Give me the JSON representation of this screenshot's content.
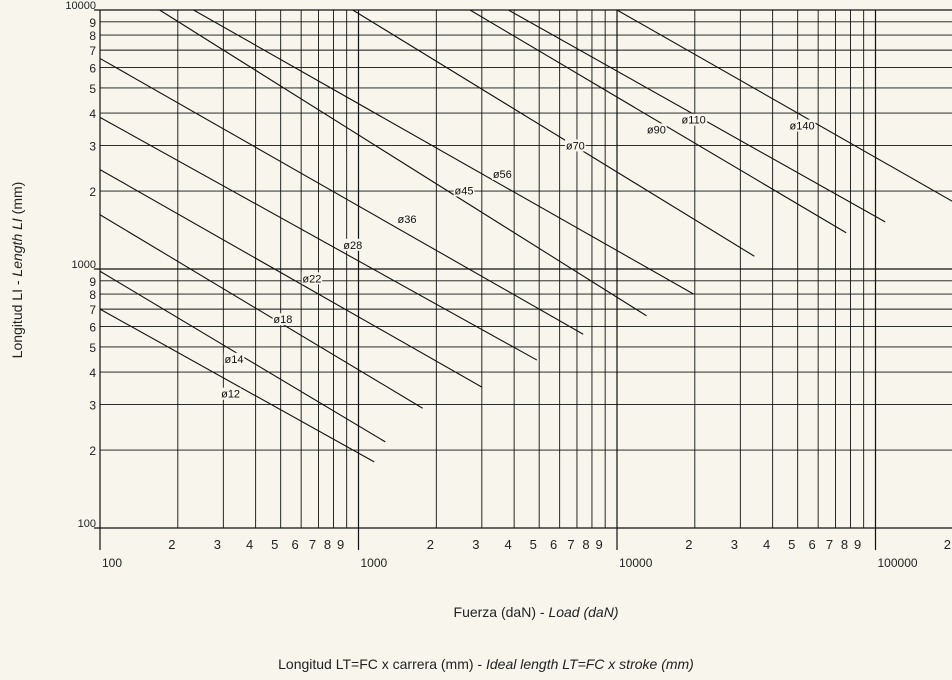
{
  "chart_data": {
    "type": "line",
    "x_scale": "log",
    "y_scale": "log",
    "xlim": [
      100,
      200000
    ],
    "ylim": [
      100,
      10000
    ],
    "grid": true,
    "xlabel": {
      "plain": "Fuerza (daN) - ",
      "italic": "Load (daN)"
    },
    "ylabel": {
      "plain": "Longitud LI - ",
      "italic": "Length LI",
      "suffix": " (mm)"
    },
    "footer": {
      "plain": "Longitud LT=FC x carrera (mm) - ",
      "italic": "Ideal length LT=FC x stroke (mm)"
    },
    "x_major_labels": [
      {
        "v": 100,
        "t": "100"
      },
      {
        "v": 1000,
        "t": "1000"
      },
      {
        "v": 10000,
        "t": "10000"
      },
      {
        "v": 100000,
        "t": "100000"
      }
    ],
    "x_minor_labels": [
      {
        "v": 200,
        "t": "2"
      },
      {
        "v": 300,
        "t": "3"
      },
      {
        "v": 400,
        "t": "4"
      },
      {
        "v": 500,
        "t": "5"
      },
      {
        "v": 600,
        "t": "6"
      },
      {
        "v": 700,
        "t": "7"
      },
      {
        "v": 800,
        "t": "8"
      },
      {
        "v": 900,
        "t": "9"
      },
      {
        "v": 2000,
        "t": "2"
      },
      {
        "v": 3000,
        "t": "3"
      },
      {
        "v": 4000,
        "t": "4"
      },
      {
        "v": 5000,
        "t": "5"
      },
      {
        "v": 6000,
        "t": "6"
      },
      {
        "v": 7000,
        "t": "7"
      },
      {
        "v": 8000,
        "t": "8"
      },
      {
        "v": 9000,
        "t": "9"
      },
      {
        "v": 20000,
        "t": "2"
      },
      {
        "v": 30000,
        "t": "3"
      },
      {
        "v": 40000,
        "t": "4"
      },
      {
        "v": 50000,
        "t": "5"
      },
      {
        "v": 60000,
        "t": "6"
      },
      {
        "v": 70000,
        "t": "7"
      },
      {
        "v": 80000,
        "t": "8"
      },
      {
        "v": 90000,
        "t": "9"
      },
      {
        "v": 200000,
        "t": "2"
      }
    ],
    "y_labels": [
      {
        "v": 100,
        "t": "100"
      },
      {
        "v": 200,
        "t": "2"
      },
      {
        "v": 300,
        "t": "3"
      },
      {
        "v": 400,
        "t": "4"
      },
      {
        "v": 500,
        "t": "5"
      },
      {
        "v": 600,
        "t": "6"
      },
      {
        "v": 700,
        "t": "7"
      },
      {
        "v": 800,
        "t": "8"
      },
      {
        "v": 900,
        "t": "9"
      },
      {
        "v": 1000,
        "t": "1000"
      },
      {
        "v": 2000,
        "t": "2"
      },
      {
        "v": 3000,
        "t": "3"
      },
      {
        "v": 4000,
        "t": "4"
      },
      {
        "v": 5000,
        "t": "5"
      },
      {
        "v": 6000,
        "t": "6"
      },
      {
        "v": 7000,
        "t": "7"
      },
      {
        "v": 8000,
        "t": "8"
      },
      {
        "v": 9000,
        "t": "9"
      },
      {
        "v": 10000,
        "t": "10000"
      }
    ],
    "series": [
      {
        "name": "ø12",
        "x": [
          100,
          1150
        ],
        "y": [
          700,
          180
        ],
        "label_at": [
          320,
          330
        ]
      },
      {
        "name": "ø14",
        "x": [
          100,
          1270
        ],
        "y": [
          980,
          215
        ],
        "label_at": [
          330,
          450
        ]
      },
      {
        "name": "ø18",
        "x": [
          100,
          1770
        ],
        "y": [
          1620,
          290
        ],
        "label_at": [
          510,
          640
        ]
      },
      {
        "name": "ø22",
        "x": [
          100,
          3000
        ],
        "y": [
          2420,
          350
        ],
        "label_at": [
          660,
          920
        ]
      },
      {
        "name": "ø28",
        "x": [
          100,
          4900
        ],
        "y": [
          3850,
          445
        ],
        "label_at": [
          950,
          1240
        ]
      },
      {
        "name": "ø36",
        "x": [
          100,
          7400
        ],
        "y": [
          6500,
          560
        ],
        "label_at": [
          1540,
          1560
        ]
      },
      {
        "name": "ø45",
        "x": [
          170,
          13000
        ],
        "y": [
          10000,
          660
        ],
        "label_at": [
          2560,
          2010
        ]
      },
      {
        "name": "ø56",
        "x": [
          230,
          19800
        ],
        "y": [
          10000,
          800
        ],
        "label_at": [
          3600,
          2330
        ]
      },
      {
        "name": "ø70",
        "x": [
          950,
          34000
        ],
        "y": [
          10000,
          1120
        ],
        "label_at": [
          6900,
          3000
        ]
      },
      {
        "name": "ø90",
        "x": [
          2700,
          77000
        ],
        "y": [
          10000,
          1380
        ],
        "label_at": [
          14200,
          3460
        ]
      },
      {
        "name": "ø110",
        "x": [
          3800,
          109000
        ],
        "y": [
          10000,
          1520
        ],
        "label_at": [
          19800,
          3770
        ]
      },
      {
        "name": "ø140",
        "x": [
          10000,
          250000
        ],
        "y": [
          10000,
          1600
        ],
        "label_at": [
          52000,
          3580
        ]
      }
    ]
  }
}
